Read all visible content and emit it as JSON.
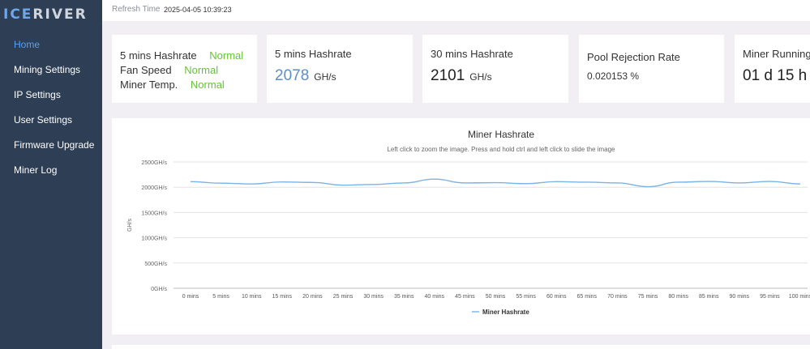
{
  "brand": {
    "logo_part1": "ICE",
    "logo_part2": "RIVER"
  },
  "sidebar": {
    "items": [
      {
        "label": "Home",
        "active": true
      },
      {
        "label": "Mining Settings"
      },
      {
        "label": "IP Settings"
      },
      {
        "label": "User Settings"
      },
      {
        "label": "Firmware Upgrade"
      },
      {
        "label": "Miner Log"
      }
    ]
  },
  "header": {
    "refresh_label": "Refresh Time",
    "refresh_time": "2025-04-05 10:39:23"
  },
  "cards": {
    "status": {
      "rows": [
        {
          "label": "5 mins Hashrate",
          "value": "Normal"
        },
        {
          "label": "Fan Speed",
          "value": "Normal"
        },
        {
          "label": "Miner Temp.",
          "value": "Normal"
        }
      ]
    },
    "hashrate_5m": {
      "title": "5 mins Hashrate",
      "value": "2078",
      "unit": "GH/s"
    },
    "hashrate_30m": {
      "title": "30 mins Hashrate",
      "value": "2101",
      "unit": "GH/s"
    },
    "rejection": {
      "title": "Pool Rejection Rate",
      "value": "0.020153 %"
    },
    "running": {
      "title": "Miner Running",
      "value": "01 d 15 h"
    }
  },
  "colors": {
    "sidebar_bg": "#2e3e54",
    "active_nav": "#4da3ff",
    "status_ok": "#67c23a",
    "line": "#7ab3e6"
  },
  "chart_data": {
    "type": "line",
    "title": "Miner Hashrate",
    "subtitle": "Left click to zoom the image. Press and hold ctrl and left click to slide the image",
    "ylabel": "GH/s",
    "ylim": [
      0,
      2500
    ],
    "yticks": [
      "0GH/s",
      "500GH/s",
      "1000GH/s",
      "1500GH/s",
      "2000GH/s",
      "2500GH/s"
    ],
    "grid": true,
    "legend": "bottom-center",
    "categories": [
      "0 mins",
      "5 mins",
      "10 mins",
      "15 mins",
      "20 mins",
      "25 mins",
      "30 mins",
      "35 mins",
      "40 mins",
      "45 mins",
      "50 mins",
      "55 mins",
      "60 mins",
      "65 mins",
      "70 mins",
      "75 mins",
      "80 mins",
      "85 mins",
      "90 mins",
      "95 mins",
      "100 mins"
    ],
    "series": [
      {
        "name": "Miner Hashrate",
        "values": [
          2110,
          2080,
          2065,
          2105,
          2095,
          2040,
          2055,
          2085,
          2160,
          2085,
          2090,
          2070,
          2110,
          2100,
          2085,
          2010,
          2100,
          2115,
          2085,
          2115,
          2065
        ]
      }
    ]
  }
}
